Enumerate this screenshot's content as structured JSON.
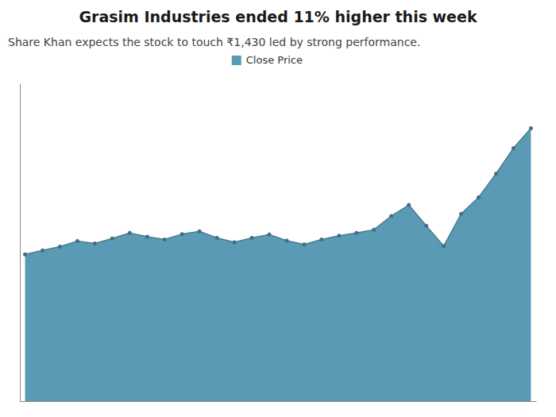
{
  "chart_data": {
    "type": "area",
    "title": "Grasim Industries ended 11% higher this week",
    "subtitle": "Share Khan expects the stock to touch ₹1,430 led by strong performance.",
    "series": [
      {
        "name": "Close Price",
        "color": "#5b9ab5",
        "values": [
          1168,
          1175,
          1182,
          1192,
          1188,
          1197,
          1207,
          1200,
          1195,
          1205,
          1210,
          1198,
          1190,
          1198,
          1204,
          1193,
          1186,
          1195,
          1202,
          1207,
          1213,
          1238,
          1258,
          1220,
          1183,
          1242,
          1272,
          1315,
          1362,
          1398
        ]
      }
    ],
    "ylim": [
      900,
      1480
    ],
    "grid": false,
    "legend": "top",
    "marker": "circle",
    "tick_labels": false
  }
}
